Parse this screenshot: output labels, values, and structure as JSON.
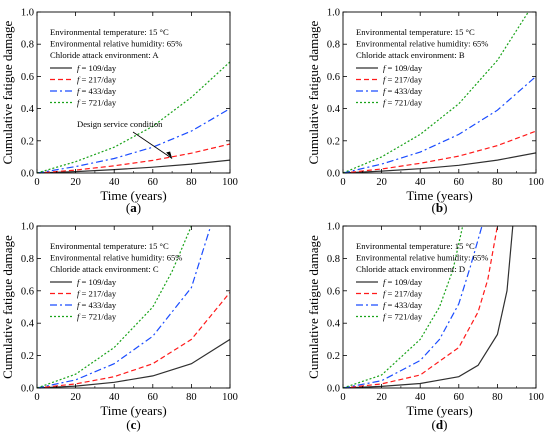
{
  "figure": {
    "panel_labels": [
      "(a)",
      "(b)",
      "(c)",
      "(d)"
    ]
  },
  "chart_data": [
    {
      "type": "line",
      "panel_label": "(a)",
      "xlabel": "Time (years)",
      "ylabel": "Cumulative fatigue damage",
      "xlim": [
        0,
        100
      ],
      "ylim": [
        0,
        1.0
      ],
      "xticks": [
        0,
        20,
        40,
        60,
        80,
        100
      ],
      "yticks": [
        0.0,
        0.2,
        0.4,
        0.6,
        0.8,
        1.0
      ],
      "info_lines": [
        "Environmental temperature: 15 °C",
        "Environmental relative humidity: 65%",
        "Chloride attack environment: A"
      ],
      "legend": {
        "placement": "left",
        "entries": [
          "f = 109/day",
          "f = 217/day",
          "f = 433/day",
          "f = 721/day"
        ]
      },
      "annotation": {
        "text": "Design service condition",
        "point": [
          70,
          0.09
        ]
      },
      "series": [
        {
          "name": "f = 109/day",
          "color": "#303030",
          "dash": "solid",
          "x": [
            0,
            20,
            40,
            60,
            80,
            100
          ],
          "y": [
            0,
            0.009,
            0.021,
            0.036,
            0.055,
            0.08
          ]
        },
        {
          "name": "f = 217/day",
          "color": "#ff1a1a",
          "dash": "dash",
          "x": [
            0,
            20,
            40,
            60,
            80,
            100
          ],
          "y": [
            0,
            0.018,
            0.045,
            0.078,
            0.123,
            0.18
          ]
        },
        {
          "name": "f = 433/day",
          "color": "#1a4cff",
          "dash": "dashdot",
          "x": [
            0,
            20,
            40,
            60,
            80,
            100
          ],
          "y": [
            0,
            0.04,
            0.09,
            0.16,
            0.26,
            0.4
          ]
        },
        {
          "name": "f = 721/day",
          "color": "#1aa31a",
          "dash": "dot",
          "x": [
            0,
            20,
            40,
            60,
            80,
            100
          ],
          "y": [
            0,
            0.07,
            0.16,
            0.29,
            0.47,
            0.69
          ]
        }
      ]
    },
    {
      "type": "line",
      "panel_label": "(b)",
      "xlabel": "Time (years)",
      "ylabel": "Cumulative fatigue damage",
      "xlim": [
        0,
        100
      ],
      "ylim": [
        0,
        1.0
      ],
      "xticks": [
        0,
        20,
        40,
        60,
        80,
        100
      ],
      "yticks": [
        0.0,
        0.2,
        0.4,
        0.6,
        0.8,
        1.0
      ],
      "info_lines": [
        "Environmental temperature: 15 °C",
        "Environmental relative humidity: 65%",
        "Chloride attack environment: B"
      ],
      "legend": {
        "placement": "left",
        "entries": [
          "f = 109/day",
          "f = 217/day",
          "f = 433/day",
          "f = 721/day"
        ]
      },
      "series": [
        {
          "name": "f = 109/day",
          "color": "#303030",
          "dash": "solid",
          "x": [
            0,
            20,
            40,
            60,
            80,
            100
          ],
          "y": [
            0,
            0.012,
            0.027,
            0.048,
            0.08,
            0.125
          ]
        },
        {
          "name": "f = 217/day",
          "color": "#ff1a1a",
          "dash": "dash",
          "x": [
            0,
            20,
            40,
            60,
            80,
            100
          ],
          "y": [
            0,
            0.025,
            0.06,
            0.105,
            0.17,
            0.26
          ]
        },
        {
          "name": "f = 433/day",
          "color": "#1a4cff",
          "dash": "dashdot",
          "x": [
            0,
            20,
            40,
            60,
            80,
            100
          ],
          "y": [
            0,
            0.055,
            0.13,
            0.24,
            0.39,
            0.6
          ]
        },
        {
          "name": "f = 721/day",
          "color": "#1aa31a",
          "dash": "dot",
          "x": [
            0,
            20,
            40,
            60,
            80,
            96
          ],
          "y": [
            0,
            0.1,
            0.24,
            0.43,
            0.7,
            1.0
          ]
        }
      ]
    },
    {
      "type": "line",
      "panel_label": "(c)",
      "xlabel": "Time (years)",
      "ylabel": "Cumulative fatigue damage",
      "xlim": [
        0,
        100
      ],
      "ylim": [
        0,
        1.0
      ],
      "xticks": [
        0,
        20,
        40,
        60,
        80,
        100
      ],
      "yticks": [
        0.0,
        0.2,
        0.4,
        0.6,
        0.8,
        1.0
      ],
      "info_lines": [
        "Environmental temperature: 15 °C",
        "Environmental relative humidity: 65%",
        "Chloride attack environment: C"
      ],
      "legend": {
        "placement": "left",
        "entries": [
          "f = 109/day",
          "f = 217/day",
          "f = 433/day",
          "f = 721/day"
        ]
      },
      "series": [
        {
          "name": "f = 109/day",
          "color": "#303030",
          "dash": "solid",
          "x": [
            0,
            20,
            40,
            60,
            80,
            100
          ],
          "y": [
            0,
            0.012,
            0.035,
            0.075,
            0.15,
            0.3
          ]
        },
        {
          "name": "f = 217/day",
          "color": "#ff1a1a",
          "dash": "dash",
          "x": [
            0,
            20,
            40,
            60,
            80,
            100
          ],
          "y": [
            0,
            0.025,
            0.07,
            0.15,
            0.3,
            0.59
          ]
        },
        {
          "name": "f = 433/day",
          "color": "#1a4cff",
          "dash": "dashdot",
          "x": [
            0,
            20,
            40,
            60,
            80,
            90
          ],
          "y": [
            0,
            0.05,
            0.15,
            0.32,
            0.62,
            1.0
          ]
        },
        {
          "name": "f = 721/day",
          "color": "#1aa31a",
          "dash": "dot",
          "x": [
            0,
            20,
            40,
            60,
            70,
            80
          ],
          "y": [
            0,
            0.085,
            0.25,
            0.5,
            0.72,
            1.0
          ]
        }
      ]
    },
    {
      "type": "line",
      "panel_label": "(d)",
      "xlabel": "Time (years)",
      "ylabel": "Cumulative fatigue damage",
      "xlim": [
        0,
        100
      ],
      "ylim": [
        0,
        1.0
      ],
      "xticks": [
        0,
        20,
        40,
        60,
        80,
        100
      ],
      "yticks": [
        0.0,
        0.2,
        0.4,
        0.6,
        0.8,
        1.0
      ],
      "info_lines": [
        "Environmental temperature: 15 °C",
        "Environmental relative humidity: 65%",
        "Chloride attack environment: D"
      ],
      "legend": {
        "placement": "left",
        "entries": [
          "f = 109/day",
          "f = 217/day",
          "f = 433/day",
          "f = 721/day"
        ]
      },
      "series": [
        {
          "name": "f = 109/day",
          "color": "#303030",
          "dash": "solid",
          "x": [
            0,
            20,
            40,
            60,
            70,
            80,
            85,
            88
          ],
          "y": [
            0,
            0.01,
            0.028,
            0.07,
            0.14,
            0.33,
            0.6,
            1.0
          ]
        },
        {
          "name": "f = 217/day",
          "color": "#ff1a1a",
          "dash": "dash",
          "x": [
            0,
            20,
            40,
            60,
            70,
            75,
            80
          ],
          "y": [
            0,
            0.025,
            0.08,
            0.25,
            0.47,
            0.67,
            1.0
          ]
        },
        {
          "name": "f = 433/day",
          "color": "#1a4cff",
          "dash": "dashdot",
          "x": [
            0,
            20,
            40,
            50,
            60,
            66,
            72
          ],
          "y": [
            0,
            0.045,
            0.17,
            0.3,
            0.52,
            0.75,
            1.0
          ]
        },
        {
          "name": "f = 721/day",
          "color": "#1aa31a",
          "dash": "dot",
          "x": [
            0,
            20,
            40,
            50,
            57,
            62
          ],
          "y": [
            0,
            0.08,
            0.3,
            0.5,
            0.73,
            1.0
          ]
        }
      ]
    }
  ]
}
